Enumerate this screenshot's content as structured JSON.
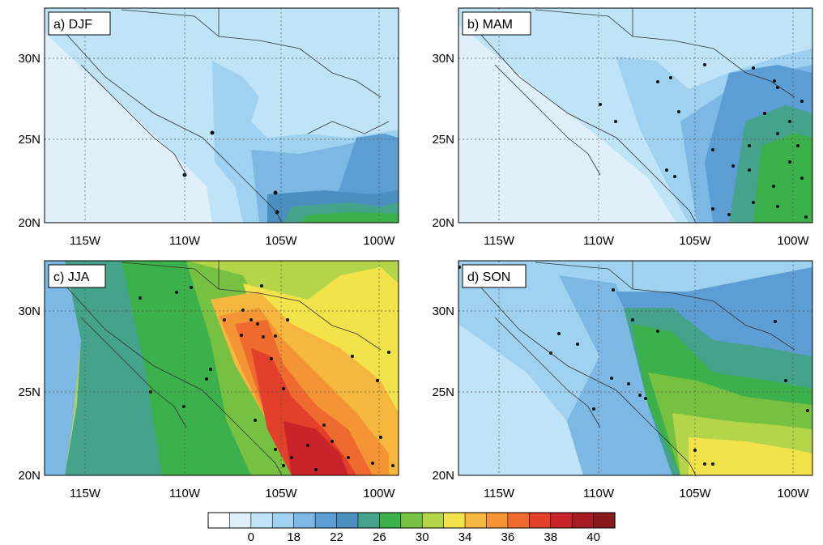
{
  "panels": [
    {
      "id": "a",
      "title": "a) DJF"
    },
    {
      "id": "b",
      "title": "b) MAM"
    },
    {
      "id": "c",
      "title": "c) JJA"
    },
    {
      "id": "d",
      "title": "d) SON"
    }
  ],
  "axes": {
    "lat_labels": [
      "30N",
      "25N",
      "20N"
    ],
    "lon_labels": [
      "115W",
      "110W",
      "105W",
      "100W"
    ]
  },
  "colorbar": {
    "colors": [
      "#ffffff",
      "#dff0fb",
      "#bfe3f7",
      "#9fd2f0",
      "#7db8e4",
      "#5c9dd4",
      "#4a8fbf",
      "#44a38a",
      "#3cb04a",
      "#77c142",
      "#b4d44a",
      "#f2e34a",
      "#f6b73f",
      "#f49535",
      "#ef6a2e",
      "#e2402a",
      "#c8242a",
      "#a51b22",
      "#881a1e"
    ],
    "tick_labels": [
      "0",
      "18",
      "22",
      "26",
      "30",
      "34",
      "36",
      "38",
      "40"
    ]
  },
  "chart_data": {
    "type": "heatmap",
    "variable_levels": [
      0,
      18,
      22,
      26,
      30,
      34,
      36,
      38,
      40
    ],
    "lon_range": [
      "117W",
      "99W"
    ],
    "lat_range": [
      "20N",
      "33N"
    ],
    "seasons": [
      "DJF",
      "MAM",
      "JJA",
      "SON"
    ]
  }
}
